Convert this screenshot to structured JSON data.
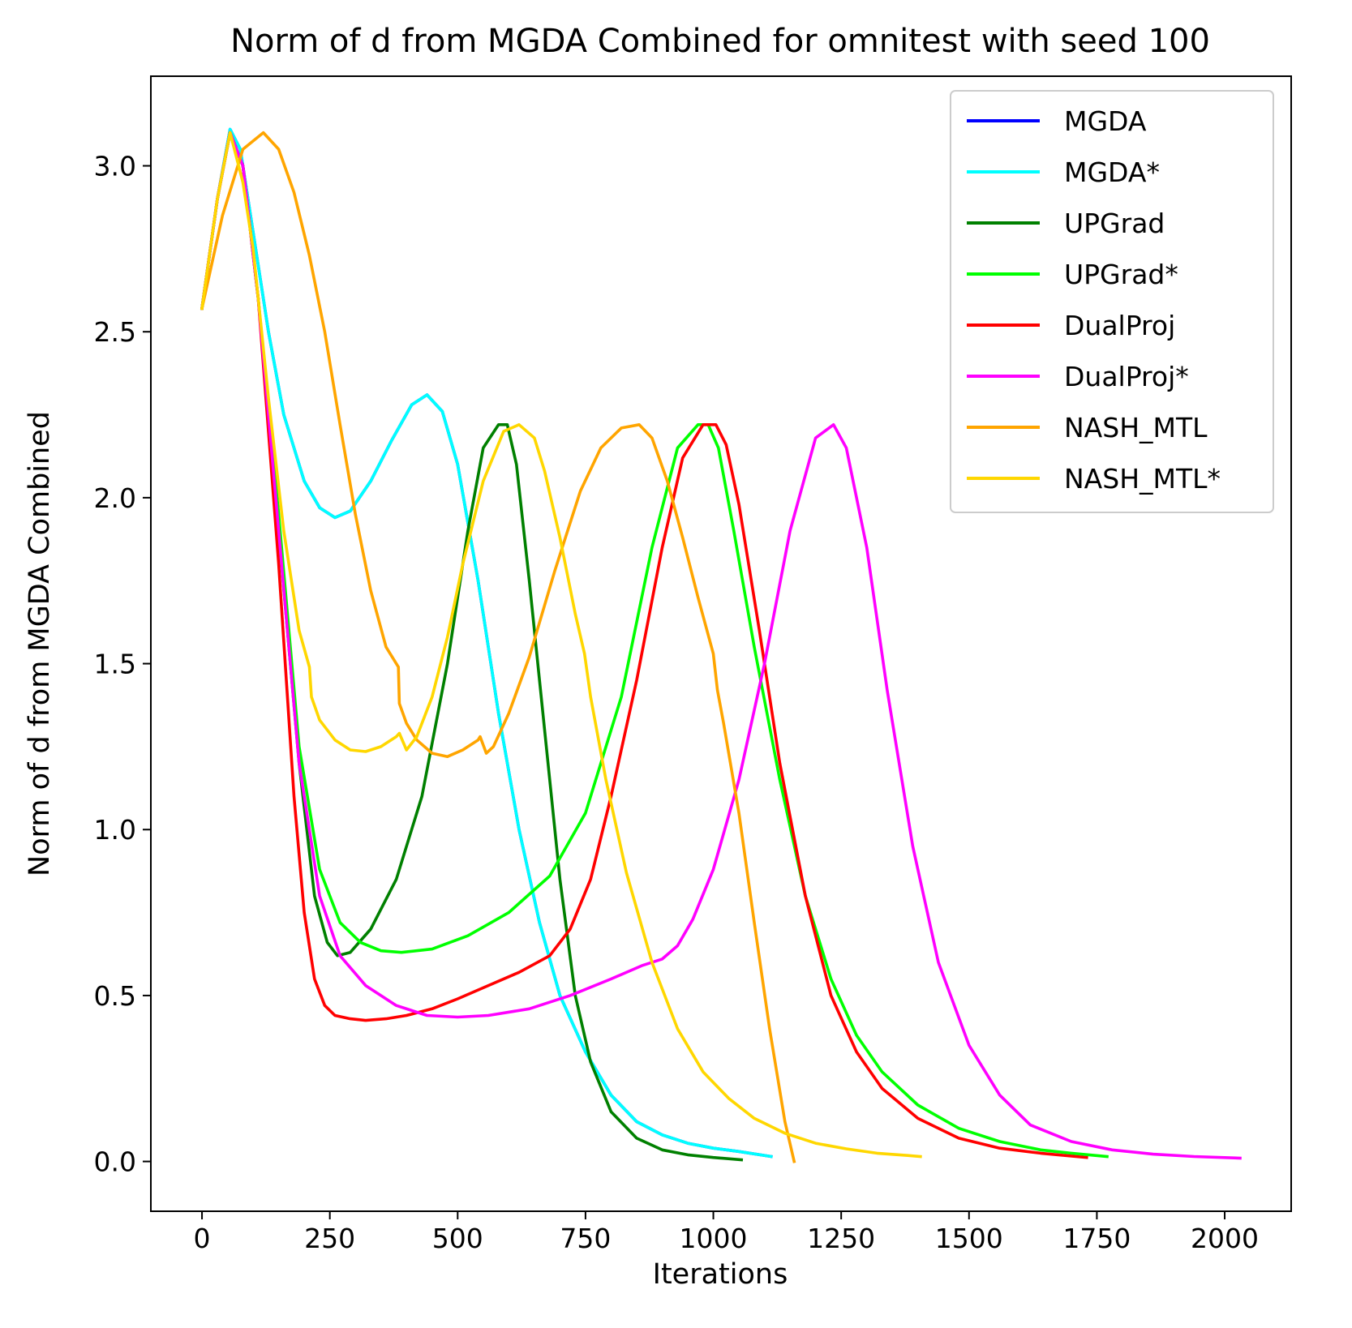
{
  "chart_data": {
    "type": "line",
    "title": "Norm of d from MGDA Combined for omnitest with seed 100",
    "xlabel": "Iterations",
    "ylabel": "Norm of d from MGDA Combined",
    "xlim": [
      -100,
      2130
    ],
    "ylim": [
      -0.15,
      3.27
    ],
    "xticks": [
      0,
      250,
      500,
      750,
      1000,
      1250,
      1500,
      1750,
      2000
    ],
    "yticks": [
      0.0,
      0.5,
      1.0,
      1.5,
      2.0,
      2.5,
      3.0
    ],
    "xtick_labels": [
      "0",
      "250",
      "500",
      "750",
      "1000",
      "1250",
      "1500",
      "1750",
      "2000"
    ],
    "ytick_labels": [
      "0.0",
      "0.5",
      "1.0",
      "1.5",
      "2.0",
      "2.5",
      "3.0"
    ],
    "grid": false,
    "legend_position": "top-right",
    "series": [
      {
        "name": "MGDA",
        "color": "#0000ff",
        "x": [
          0,
          30,
          55,
          75,
          100,
          130,
          160,
          200,
          230,
          260,
          290,
          330,
          370,
          410,
          440,
          470,
          500,
          540,
          580,
          620,
          660,
          700,
          750,
          800,
          850,
          900,
          950,
          1000,
          1050,
          1113
        ],
        "y": [
          2.57,
          2.9,
          3.11,
          3.05,
          2.8,
          2.5,
          2.25,
          2.05,
          1.97,
          1.94,
          1.96,
          2.05,
          2.17,
          2.28,
          2.31,
          2.26,
          2.1,
          1.75,
          1.35,
          1.0,
          0.72,
          0.5,
          0.33,
          0.2,
          0.12,
          0.08,
          0.055,
          0.04,
          0.03,
          0.015
        ]
      },
      {
        "name": "MGDA*",
        "color": "#00ffff",
        "x": [
          0,
          30,
          55,
          75,
          100,
          130,
          160,
          200,
          230,
          260,
          290,
          330,
          370,
          410,
          440,
          470,
          500,
          540,
          580,
          620,
          660,
          700,
          750,
          800,
          850,
          900,
          950,
          1000,
          1050,
          1113
        ],
        "y": [
          2.57,
          2.9,
          3.11,
          3.05,
          2.8,
          2.5,
          2.25,
          2.05,
          1.97,
          1.94,
          1.96,
          2.05,
          2.17,
          2.28,
          2.31,
          2.26,
          2.1,
          1.75,
          1.35,
          1.0,
          0.72,
          0.5,
          0.33,
          0.2,
          0.12,
          0.08,
          0.055,
          0.04,
          0.03,
          0.015
        ]
      },
      {
        "name": "UPGrad",
        "color": "#008000",
        "x": [
          0,
          30,
          55,
          80,
          110,
          150,
          190,
          220,
          245,
          265,
          290,
          330,
          380,
          430,
          480,
          520,
          550,
          580,
          597,
          615,
          640,
          670,
          700,
          730,
          760,
          800,
          850,
          900,
          950,
          1000,
          1055
        ],
        "y": [
          2.57,
          2.9,
          3.1,
          3.0,
          2.6,
          1.9,
          1.2,
          0.8,
          0.66,
          0.62,
          0.63,
          0.7,
          0.85,
          1.1,
          1.5,
          1.9,
          2.15,
          2.22,
          2.22,
          2.1,
          1.75,
          1.3,
          0.85,
          0.5,
          0.3,
          0.15,
          0.07,
          0.035,
          0.02,
          0.012,
          0.005
        ]
      },
      {
        "name": "UPGrad*",
        "color": "#00ff00",
        "x": [
          0,
          30,
          55,
          80,
          110,
          150,
          190,
          230,
          270,
          310,
          350,
          390,
          450,
          520,
          600,
          680,
          750,
          820,
          880,
          930,
          970,
          990,
          1010,
          1040,
          1080,
          1130,
          1180,
          1230,
          1280,
          1330,
          1400,
          1480,
          1560,
          1640,
          1700,
          1770
        ],
        "y": [
          2.57,
          2.9,
          3.1,
          3.0,
          2.6,
          1.95,
          1.25,
          0.88,
          0.72,
          0.66,
          0.635,
          0.63,
          0.64,
          0.68,
          0.75,
          0.86,
          1.05,
          1.4,
          1.85,
          2.15,
          2.22,
          2.22,
          2.15,
          1.9,
          1.55,
          1.15,
          0.8,
          0.55,
          0.38,
          0.27,
          0.17,
          0.1,
          0.06,
          0.035,
          0.025,
          0.015
        ]
      },
      {
        "name": "DualProj",
        "color": "#ff0000",
        "x": [
          0,
          30,
          55,
          80,
          110,
          150,
          180,
          200,
          220,
          240,
          260,
          290,
          320,
          360,
          400,
          450,
          500,
          560,
          620,
          680,
          720,
          760,
          800,
          850,
          900,
          940,
          980,
          1005,
          1025,
          1050,
          1090,
          1130,
          1180,
          1230,
          1280,
          1330,
          1400,
          1480,
          1560,
          1640,
          1730
        ],
        "y": [
          2.57,
          2.9,
          3.1,
          3.0,
          2.6,
          1.8,
          1.1,
          0.75,
          0.55,
          0.47,
          0.44,
          0.43,
          0.425,
          0.43,
          0.44,
          0.46,
          0.49,
          0.53,
          0.57,
          0.62,
          0.7,
          0.85,
          1.1,
          1.45,
          1.85,
          2.12,
          2.22,
          2.22,
          2.16,
          1.98,
          1.6,
          1.2,
          0.8,
          0.5,
          0.33,
          0.22,
          0.13,
          0.07,
          0.04,
          0.025,
          0.012
        ]
      },
      {
        "name": "DualProj*",
        "color": "#ff00ff",
        "x": [
          0,
          30,
          55,
          80,
          110,
          150,
          190,
          230,
          270,
          320,
          380,
          440,
          500,
          560,
          640,
          720,
          800,
          860,
          900,
          930,
          960,
          1000,
          1050,
          1100,
          1150,
          1200,
          1235,
          1260,
          1300,
          1340,
          1390,
          1440,
          1500,
          1560,
          1620,
          1700,
          1780,
          1860,
          1940,
          2030
        ],
        "y": [
          2.57,
          2.9,
          3.1,
          3.0,
          2.6,
          1.9,
          1.2,
          0.8,
          0.62,
          0.53,
          0.47,
          0.44,
          0.435,
          0.44,
          0.46,
          0.5,
          0.55,
          0.59,
          0.61,
          0.65,
          0.73,
          0.88,
          1.15,
          1.5,
          1.9,
          2.18,
          2.22,
          2.15,
          1.85,
          1.42,
          0.95,
          0.6,
          0.35,
          0.2,
          0.11,
          0.06,
          0.035,
          0.022,
          0.015,
          0.01
        ]
      },
      {
        "name": "NASH_MTL",
        "color": "#ffa500",
        "x": [
          0,
          40,
          80,
          120,
          150,
          180,
          210,
          240,
          270,
          300,
          330,
          360,
          384,
          386,
          400,
          420,
          450,
          480,
          510,
          540,
          544,
          556,
          570,
          600,
          640,
          690,
          740,
          780,
          820,
          855,
          880,
          910,
          940,
          970,
          1000,
          1008,
          1020,
          1050,
          1080,
          1110,
          1140,
          1158
        ],
        "y": [
          2.57,
          2.85,
          3.05,
          3.1,
          3.05,
          2.92,
          2.73,
          2.5,
          2.22,
          1.95,
          1.72,
          1.55,
          1.49,
          1.38,
          1.32,
          1.27,
          1.23,
          1.22,
          1.24,
          1.27,
          1.28,
          1.23,
          1.25,
          1.35,
          1.52,
          1.78,
          2.02,
          2.15,
          2.21,
          2.22,
          2.18,
          2.05,
          1.88,
          1.7,
          1.53,
          1.42,
          1.32,
          1.05,
          0.72,
          0.4,
          0.12,
          0.0
        ]
      },
      {
        "name": "NASH_MTL*",
        "color": "#ffd700",
        "x": [
          0,
          30,
          55,
          80,
          100,
          130,
          160,
          190,
          210,
          214,
          230,
          260,
          290,
          320,
          350,
          380,
          386,
          400,
          420,
          450,
          480,
          510,
          550,
          590,
          620,
          650,
          670,
          700,
          730,
          748,
          760,
          790,
          830,
          880,
          930,
          980,
          1030,
          1080,
          1140,
          1200,
          1260,
          1320,
          1380,
          1405
        ],
        "y": [
          2.57,
          2.9,
          3.1,
          2.95,
          2.75,
          2.3,
          1.9,
          1.6,
          1.49,
          1.4,
          1.33,
          1.27,
          1.24,
          1.235,
          1.25,
          1.28,
          1.29,
          1.24,
          1.28,
          1.4,
          1.58,
          1.8,
          2.05,
          2.2,
          2.22,
          2.18,
          2.08,
          1.88,
          1.65,
          1.53,
          1.4,
          1.15,
          0.87,
          0.6,
          0.4,
          0.27,
          0.19,
          0.13,
          0.085,
          0.055,
          0.038,
          0.025,
          0.018,
          0.015
        ]
      }
    ]
  }
}
